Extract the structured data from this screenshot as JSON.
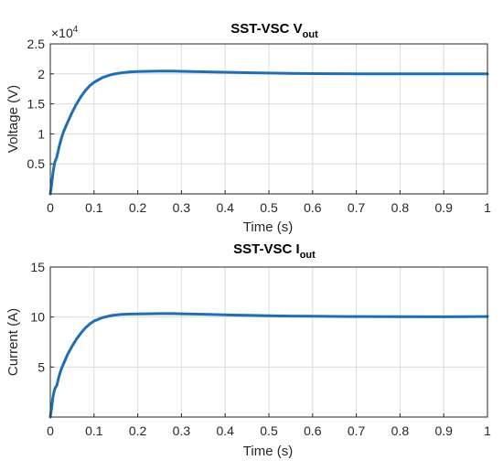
{
  "chart_data": [
    {
      "type": "line",
      "title": "SST-VSC V",
      "title_sub": "out",
      "xlabel": "Time (s)",
      "ylabel": "Voltage (V)",
      "y_exponent_label": "×10",
      "y_exponent": "4",
      "xlim": [
        0,
        1
      ],
      "ylim": [
        0,
        25000
      ],
      "xticks": [
        0,
        0.1,
        0.2,
        0.3,
        0.4,
        0.5,
        0.6,
        0.7,
        0.8,
        0.9,
        1
      ],
      "xtick_labels": [
        "0",
        "0.1",
        "0.2",
        "0.3",
        "0.4",
        "0.5",
        "0.6",
        "0.7",
        "0.8",
        "0.9",
        "1"
      ],
      "yticks": [
        5000,
        10000,
        15000,
        20000,
        25000
      ],
      "ytick_labels": [
        "0.5",
        "1",
        "1.5",
        "2",
        "2.5"
      ],
      "grid": true,
      "color": "#1f6eb5",
      "x": [
        0,
        0.003,
        0.006,
        0.01,
        0.015,
        0.02,
        0.025,
        0.03,
        0.04,
        0.05,
        0.06,
        0.07,
        0.08,
        0.09,
        0.1,
        0.12,
        0.14,
        0.16,
        0.18,
        0.2,
        0.22,
        0.25,
        0.28,
        0.3,
        0.35,
        0.4,
        0.45,
        0.5,
        0.55,
        0.6,
        0.65,
        0.7,
        0.8,
        0.9,
        1.0
      ],
      "y": [
        0,
        1500,
        3500,
        5200,
        6200,
        7800,
        9200,
        10300,
        12000,
        13600,
        15000,
        16200,
        17200,
        18000,
        18600,
        19400,
        19900,
        20150,
        20300,
        20380,
        20420,
        20450,
        20450,
        20420,
        20350,
        20280,
        20200,
        20130,
        20080,
        20050,
        20030,
        20020,
        20010,
        20000,
        20000
      ]
    },
    {
      "type": "line",
      "title": "SST-VSC I",
      "title_sub": "out",
      "xlabel": "Time (s)",
      "ylabel": "Current (A)",
      "xlim": [
        0,
        1
      ],
      "ylim": [
        0,
        15
      ],
      "xticks": [
        0,
        0.1,
        0.2,
        0.3,
        0.4,
        0.5,
        0.6,
        0.7,
        0.8,
        0.9,
        1
      ],
      "xtick_labels": [
        "0",
        "0.1",
        "0.2",
        "0.3",
        "0.4",
        "0.5",
        "0.6",
        "0.7",
        "0.8",
        "0.9",
        "1"
      ],
      "yticks": [
        5,
        10,
        15
      ],
      "ytick_labels": [
        "5",
        "10",
        "15"
      ],
      "grid": true,
      "color": "#1f6eb5",
      "x": [
        0,
        0.003,
        0.006,
        0.01,
        0.015,
        0.02,
        0.025,
        0.03,
        0.04,
        0.05,
        0.06,
        0.07,
        0.08,
        0.09,
        0.1,
        0.12,
        0.14,
        0.16,
        0.18,
        0.2,
        0.22,
        0.25,
        0.28,
        0.3,
        0.35,
        0.4,
        0.45,
        0.5,
        0.55,
        0.6,
        0.65,
        0.7,
        0.8,
        0.9,
        1.0
      ],
      "y": [
        0,
        0.9,
        2.0,
        2.8,
        3.2,
        4.1,
        4.8,
        5.3,
        6.3,
        7.1,
        7.8,
        8.4,
        8.9,
        9.3,
        9.6,
        9.95,
        10.15,
        10.25,
        10.3,
        10.32,
        10.33,
        10.34,
        10.34,
        10.33,
        10.28,
        10.22,
        10.17,
        10.13,
        10.1,
        10.08,
        10.06,
        10.05,
        10.03,
        10.02,
        10.05
      ]
    }
  ]
}
